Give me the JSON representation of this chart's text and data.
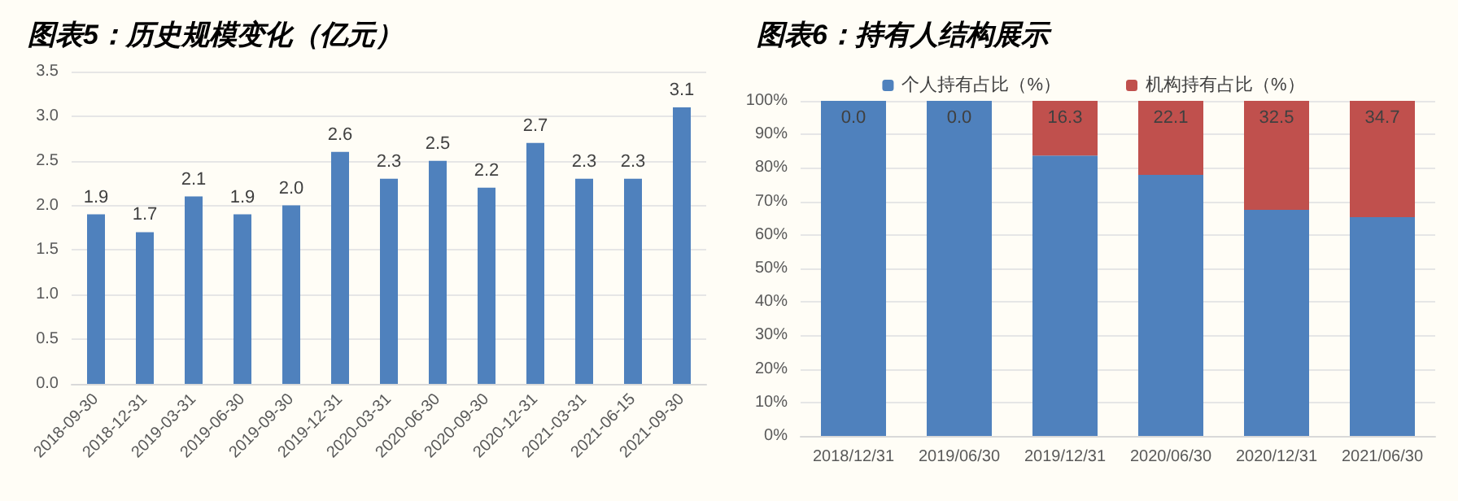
{
  "chart_data": [
    {
      "type": "bar",
      "title": "图表5：历史规模变化（亿元）",
      "categories": [
        "2018-09-30",
        "2018-12-31",
        "2019-03-31",
        "2019-06-30",
        "2019-09-30",
        "2019-12-31",
        "2020-03-31",
        "2020-06-30",
        "2020-09-30",
        "2020-12-31",
        "2021-03-31",
        "2021-06-15",
        "2021-09-30"
      ],
      "series": [
        {
          "color": "#4f81bd",
          "values": [
            1.9,
            1.7,
            2.1,
            1.9,
            2.0,
            2.6,
            2.3,
            2.5,
            2.2,
            2.7,
            2.3,
            2.3,
            3.1
          ],
          "value_labels": [
            "1.9",
            "1.7",
            "2.1",
            "1.9",
            "2.0",
            "2.6",
            "2.3",
            "2.5",
            "2.2",
            "2.7",
            "2.3",
            "2.3",
            "3.1"
          ]
        }
      ],
      "ylim": [
        0,
        3.5
      ],
      "yticks": [
        {
          "value": 0,
          "label": "0.0"
        },
        {
          "value": 0.5,
          "label": "0.5"
        },
        {
          "value": 1,
          "label": "1.0"
        },
        {
          "value": 1.5,
          "label": "1.5"
        },
        {
          "value": 2,
          "label": "2.0"
        },
        {
          "value": 2.5,
          "label": "2.5"
        },
        {
          "value": 3,
          "label": "3.0"
        },
        {
          "value": 3.5,
          "label": "3.5"
        }
      ],
      "grid": "y",
      "legend": false
    },
    {
      "type": "bar",
      "title": "图表6：持有人结构展示",
      "categories": [
        "2018/12/31",
        "2019/06/30",
        "2019/12/31",
        "2020/06/30",
        "2020/12/31",
        "2021/06/30"
      ],
      "stacked": true,
      "series": [
        {
          "name": "个人持有占比（%）",
          "color": "#4f81bd",
          "values": [
            100,
            100,
            83.7,
            77.9,
            67.5,
            65.3
          ]
        },
        {
          "name": "机构持有占比（%）",
          "color": "#c0504d",
          "values": [
            0.0,
            0.0,
            16.3,
            22.1,
            32.5,
            34.7
          ],
          "value_labels": [
            "0.0",
            "0.0",
            "16.3",
            "22.1",
            "32.5",
            "34.7"
          ]
        }
      ],
      "ylim": [
        0,
        100
      ],
      "yticks": [
        {
          "value": 0,
          "label": "0%"
        },
        {
          "value": 10,
          "label": "10%"
        },
        {
          "value": 20,
          "label": "20%"
        },
        {
          "value": 30,
          "label": "30%"
        },
        {
          "value": 40,
          "label": "40%"
        },
        {
          "value": 50,
          "label": "50%"
        },
        {
          "value": 60,
          "label": "60%"
        },
        {
          "value": 70,
          "label": "70%"
        },
        {
          "value": 80,
          "label": "80%"
        },
        {
          "value": 90,
          "label": "90%"
        },
        {
          "value": 100,
          "label": "100%"
        }
      ],
      "grid": "y",
      "legend": "top"
    }
  ]
}
